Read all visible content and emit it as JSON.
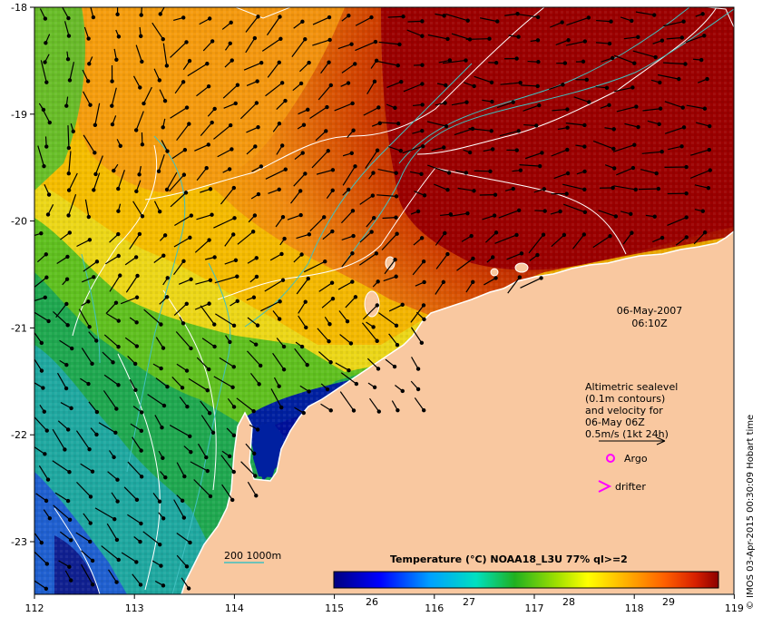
{
  "map": {
    "date_label": "06-May-2007",
    "time_label": "06:10Z",
    "x_ticks": [
      "112",
      "113",
      "114",
      "115",
      "116",
      "117",
      "118",
      "119"
    ],
    "y_ticks": [
      "-18",
      "-19",
      "-20",
      "-21",
      "-22",
      "-23"
    ],
    "legend": {
      "lines": [
        "Altimetric sealevel",
        "(0.1m contours)",
        "and velocity for",
        "06-May 06Z",
        "0.5m/s (1kt 24h)"
      ],
      "argo": "Argo",
      "drifter": "drifter",
      "isobath": "200  1000m",
      "argo_color": "#ff00ff",
      "drifter_color": "#ff00ff",
      "isobath_color": "#40c0c0"
    },
    "colorbar": {
      "title": "Temperature (°C) NOAA18_L3U 77% ql>=2",
      "ticks": [
        "26",
        "27",
        "28",
        "29"
      ]
    },
    "credit": "© IMOS 03-Apr-2015 00:30:09 Hobart time",
    "land_color": "#f9c8a0",
    "warm_color": "#9b0000"
  }
}
